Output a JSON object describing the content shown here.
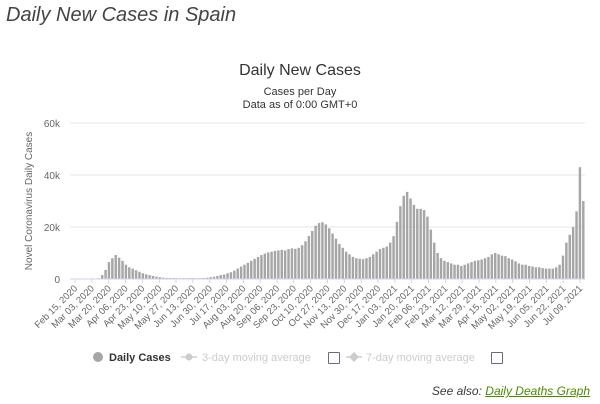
{
  "page": {
    "heading": "Daily New Cases in Spain",
    "see_also_prefix": "See also:",
    "see_also_link": "Daily Deaths Graph"
  },
  "colors": {
    "bar": "#a6a6a6",
    "bar_stroke": "#8f8f8f",
    "axis": "#666666",
    "grid": "#e6e6e6",
    "legend_inactive": "#cccccc",
    "link": "#4a8a00"
  },
  "chart_data": {
    "type": "bar",
    "title": "Daily New Cases",
    "subtitle_lines": [
      "Cases per Day",
      "Data as of 0:00 GMT+0"
    ],
    "xlabel": "",
    "ylabel": "Novel Coronavirus Daily Cases",
    "ylim": [
      0,
      60000
    ],
    "yticks": [
      0,
      20000,
      40000,
      60000
    ],
    "ytick_labels": [
      "0",
      "20k",
      "40k",
      "60k"
    ],
    "xtick_labels": [
      "Feb 15, 2020",
      "Mar 03, 2020",
      "Mar 20, 2020",
      "Apr 06, 2020",
      "Apr 23, 2020",
      "May 10, 2020",
      "May 27, 2020",
      "Jun 13, 2020",
      "Jun 30, 2020",
      "Jul 17, 2020",
      "Aug 03, 2020",
      "Aug 20, 2020",
      "Sep 06, 2020",
      "Sep 23, 2020",
      "Oct 10, 2020",
      "Oct 27, 2020",
      "Nov 13, 2020",
      "Nov 30, 2020",
      "Dec 17, 2020",
      "Jan 03, 2021",
      "Jan 20, 2021",
      "Feb 06, 2021",
      "Feb 23, 2021",
      "Mar 12, 2021",
      "Mar 29, 2021",
      "Apr 15, 2021",
      "May 02, 2021",
      "May 19, 2021",
      "Jun 05, 2021",
      "Jun 22, 2021",
      "Jul 09, 2021"
    ],
    "start_date": "Feb 15, 2020",
    "days_per_bar": 3,
    "series": [
      {
        "name": "Daily Cases",
        "values": [
          0,
          0,
          0,
          0,
          0,
          0,
          0,
          0,
          300,
          1500,
          3500,
          6500,
          8000,
          9200,
          8200,
          7000,
          5500,
          4500,
          4000,
          3400,
          2800,
          2200,
          1800,
          1500,
          1200,
          900,
          700,
          500,
          400,
          380,
          350,
          300,
          280,
          300,
          320,
          350,
          350,
          300,
          350,
          400,
          500,
          700,
          900,
          1200,
          1500,
          1700,
          2200,
          2600,
          3200,
          4000,
          4800,
          5500,
          6200,
          7000,
          7800,
          8500,
          9200,
          9800,
          10200,
          10500,
          10800,
          11000,
          11200,
          11000,
          11500,
          11800,
          11600,
          12000,
          13000,
          14500,
          16500,
          18500,
          20500,
          21500,
          21800,
          21000,
          19500,
          17500,
          15500,
          13500,
          12000,
          10500,
          9500,
          8500,
          8000,
          7800,
          7600,
          8000,
          8500,
          9500,
          10500,
          11500,
          12000,
          12500,
          14000,
          16500,
          22000,
          28000,
          32000,
          33500,
          31000,
          28500,
          27000,
          27000,
          26500,
          24000,
          19000,
          14000,
          10000,
          8000,
          7000,
          6500,
          6000,
          5500,
          5500,
          5000,
          5500,
          6000,
          6500,
          7000,
          7200,
          7500,
          8000,
          8500,
          9500,
          10000,
          9500,
          9000,
          8800,
          8000,
          7500,
          6800,
          6000,
          5500,
          5500,
          5000,
          4800,
          4500,
          4500,
          4200,
          4000,
          4000,
          4000,
          4500,
          5500,
          9000,
          14000,
          17000,
          20000,
          26000,
          43000,
          30000
        ]
      },
      {
        "name": "3-day moving average",
        "visible": false
      },
      {
        "name": "7-day moving average",
        "visible": false
      }
    ],
    "legend": {
      "position": "bottom",
      "items": [
        "Daily Cases",
        "3-day moving average",
        "7-day moving average"
      ]
    }
  }
}
